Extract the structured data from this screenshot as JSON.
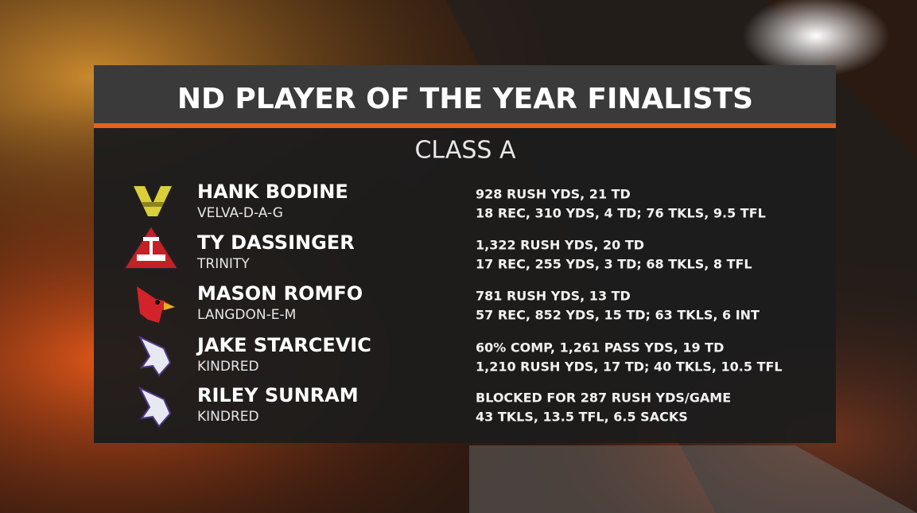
{
  "header": {
    "title": "ND PLAYER OF THE YEAR FINALISTS",
    "subtitle": "CLASS A"
  },
  "players": [
    {
      "name": "HANK BODINE",
      "school": "VELVA-D-A-G",
      "stats": [
        "928 RUSH YDS, 21 TD",
        "18 REC, 310 YDS, 4 TD; 76 TKLS, 9.5 TFL"
      ]
    },
    {
      "name": "TY DASSINGER",
      "school": "TRINITY",
      "stats": [
        "1,322 RUSH YDS, 20 TD",
        "17 REC, 255 YDS, 3 TD; 68 TKLS, 8 TFL"
      ]
    },
    {
      "name": "MASON ROMFO",
      "school": "LANGDON-E-M",
      "stats": [
        "781 RUSH YDS, 13 TD",
        "57 REC, 852 YDS, 15 TD; 63 TKLS, 6 INT"
      ]
    },
    {
      "name": "JAKE STARCEVIC",
      "school": "KINDRED",
      "stats": [
        "60% COMP, 1,261 PASS YDS, 19 TD",
        "1,210 RUSH YDS, 17 TD; 40 TKLS, 10.5 TFL"
      ]
    },
    {
      "name": "RILEY SUNRAM",
      "school": "KINDRED",
      "stats": [
        "BLOCKED FOR 287 RUSH YDS/GAME",
        "43 TKLS, 13.5 TFL, 6.5 SACKS"
      ]
    }
  ]
}
